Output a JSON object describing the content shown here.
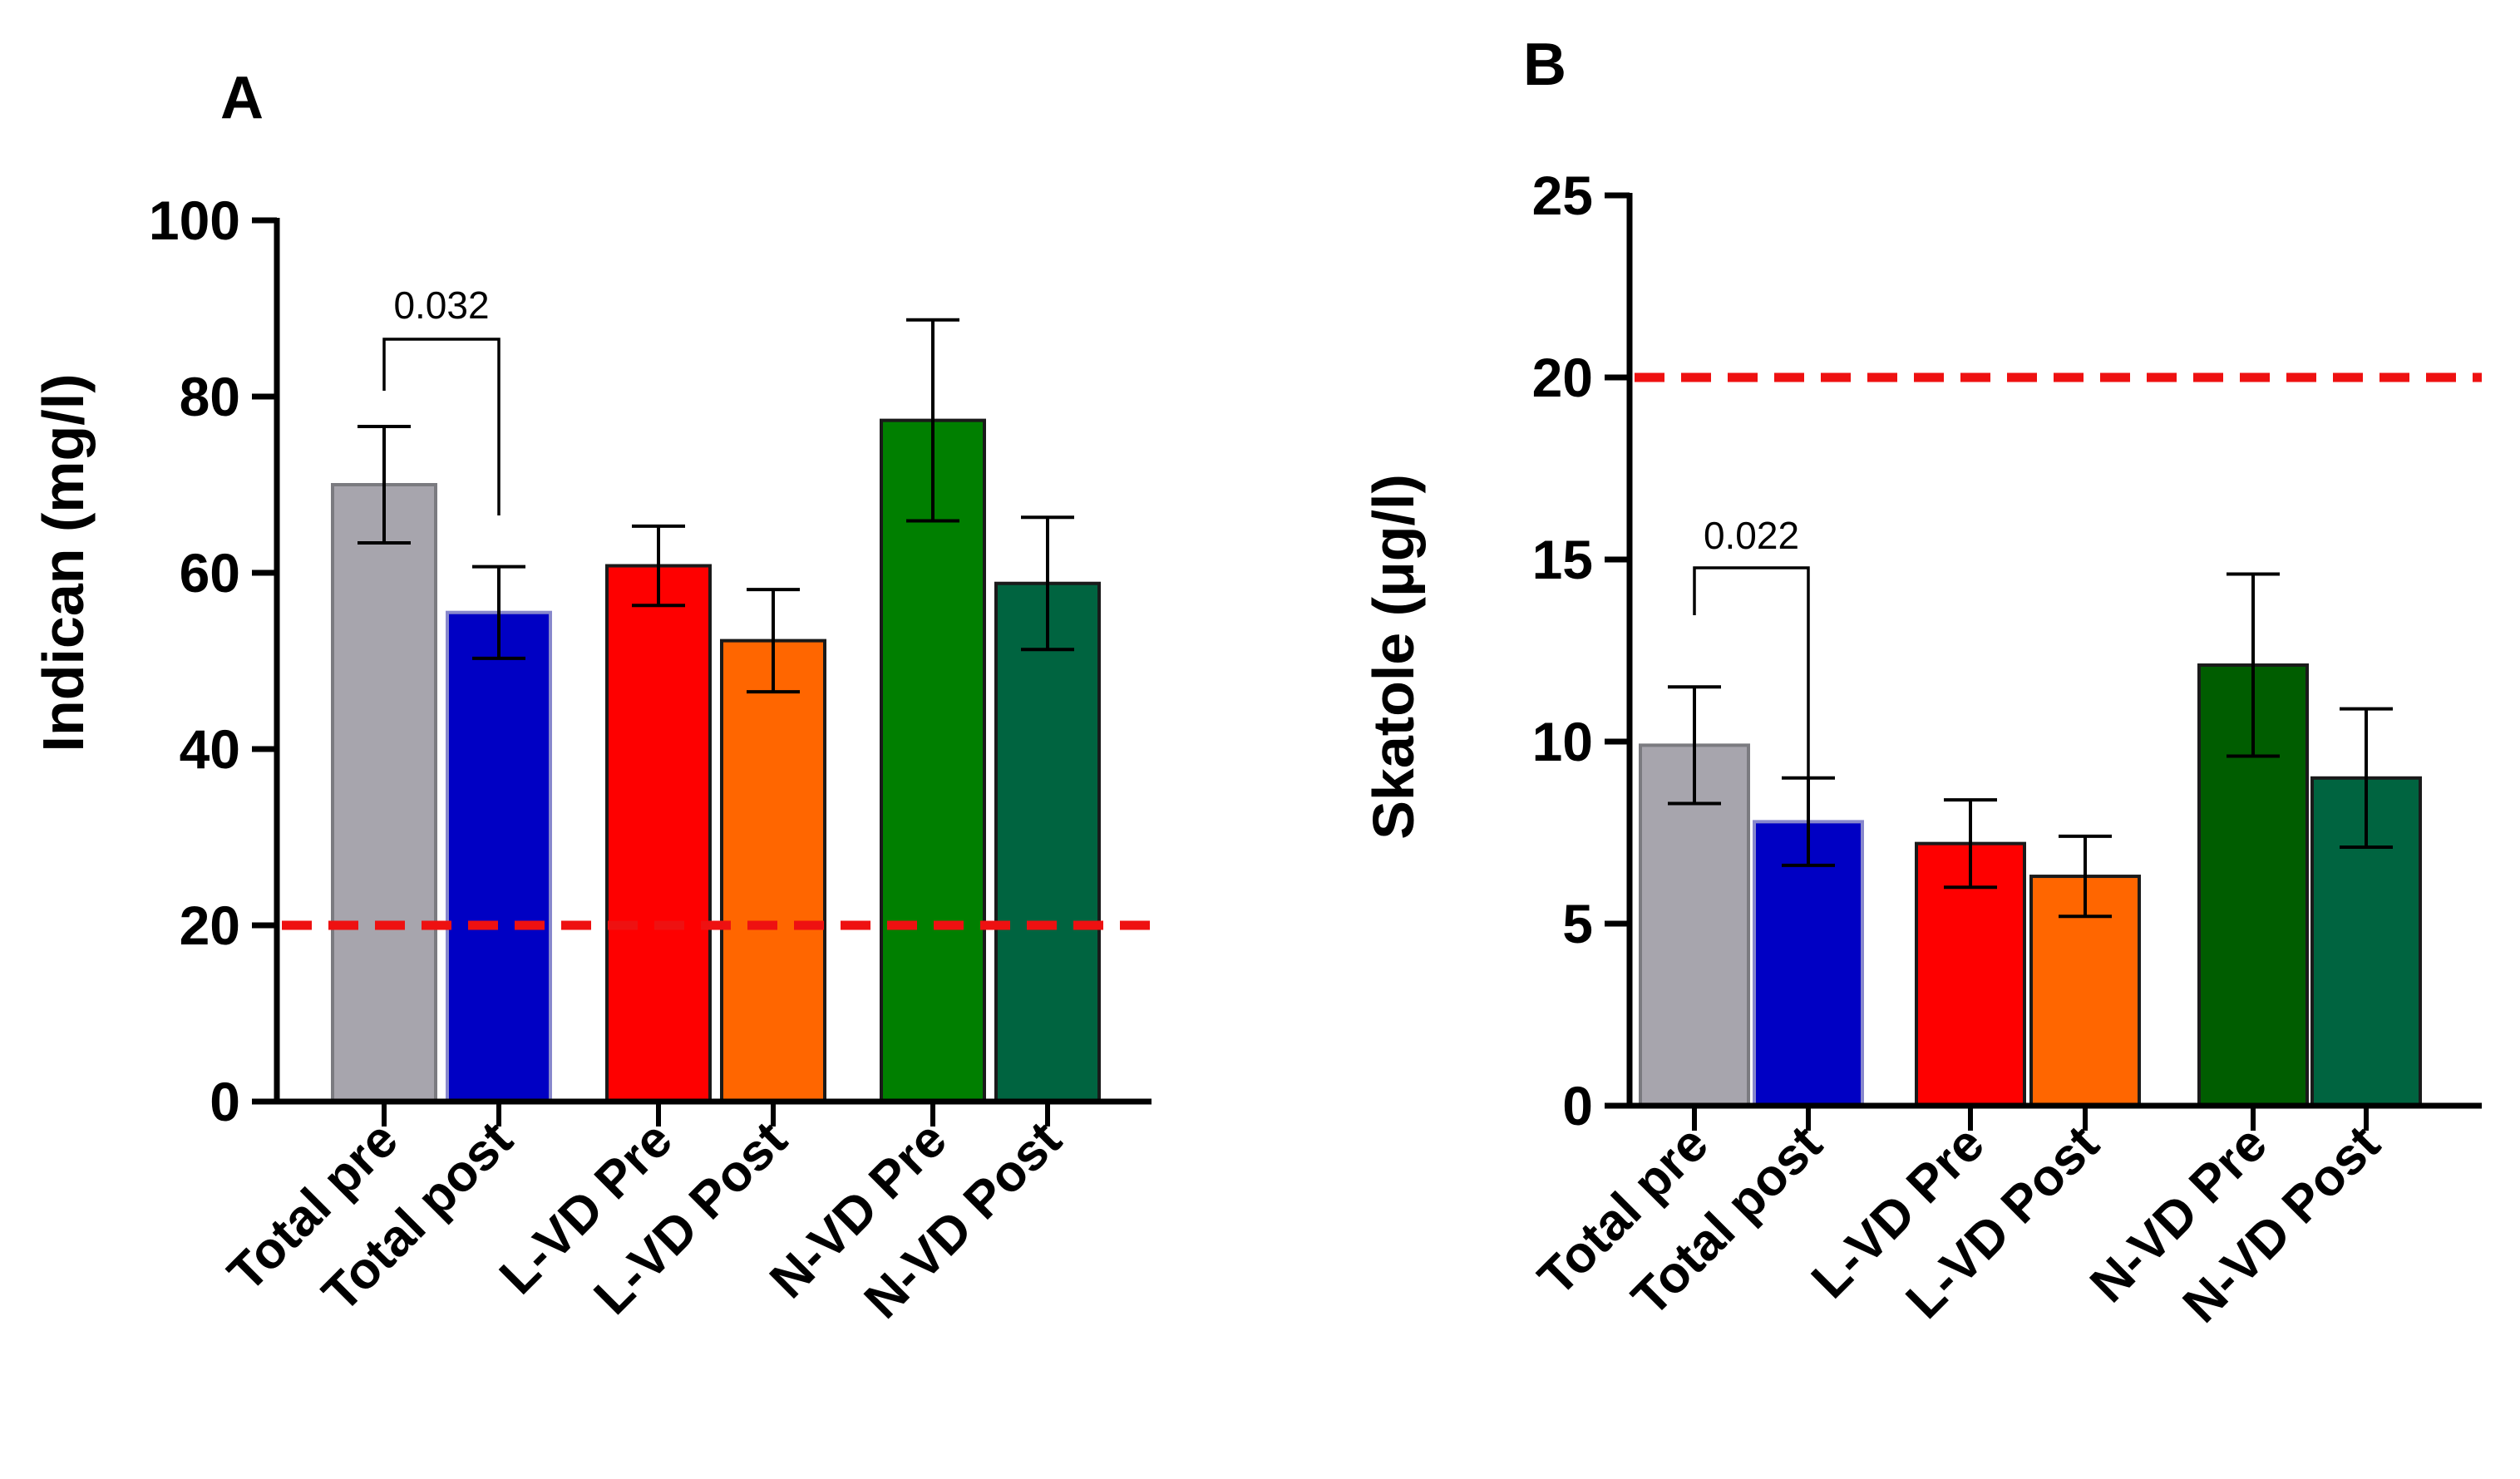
{
  "chart_data": [
    {
      "panel": "A",
      "type": "bar",
      "title": "",
      "xlabel": "",
      "ylabel": "Indican (mg/l)",
      "ylim": [
        0,
        100
      ],
      "yticks": [
        "0",
        "20",
        "40",
        "60",
        "80",
        "100"
      ],
      "categories": [
        "Total pre",
        "Total post",
        "L-VD Pre",
        "L-VD Post",
        "N-VD Pre",
        "N-VD Post"
      ],
      "values": [
        70,
        55.5,
        60.8,
        52.3,
        77.3,
        58.8
      ],
      "errors": [
        6.6,
        5.2,
        4.5,
        5.8,
        11.4,
        7.5
      ],
      "colors": [
        "#a7a5ad",
        "#0000c4",
        "#fe0000",
        "#ff6600",
        "#007f00",
        "#006440"
      ],
      "reference_line": {
        "y": 20,
        "color": "#ee1111"
      },
      "significance": {
        "label": "0.032",
        "from": 0,
        "to": 1
      }
    },
    {
      "panel": "B",
      "type": "bar",
      "title": "",
      "xlabel": "",
      "ylabel": "Skatole (μg/l)",
      "ylim": [
        0,
        25
      ],
      "yticks": [
        "0",
        "5",
        "10",
        "15",
        "20",
        "25"
      ],
      "categories": [
        "Total pre",
        "Total post",
        "L-VD Pre",
        "L-VD Post",
        "N-VD Pre",
        "N-VD Post"
      ],
      "values": [
        9.9,
        7.8,
        7.2,
        6.3,
        12.1,
        9.0
      ],
      "errors": [
        1.6,
        1.2,
        1.2,
        1.1,
        2.5,
        1.9
      ],
      "colors": [
        "#a7a5ad",
        "#0000c4",
        "#fe0000",
        "#ff6600",
        "#005d00",
        "#006440"
      ],
      "reference_line": {
        "y": 20,
        "color": "#ee1111"
      },
      "significance": {
        "label": "0.022",
        "from": 0,
        "to": 1
      }
    }
  ]
}
